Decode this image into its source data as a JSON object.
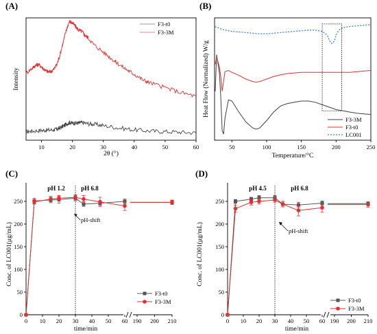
{
  "chart_data": [
    {
      "panel": "(A)",
      "type": "line",
      "xlabel": "2θ (°)",
      "ylabel": "Intensity",
      "xlim": [
        5,
        60
      ],
      "xticks": [
        "10",
        "20",
        "30",
        "40",
        "50",
        "60"
      ],
      "legend": {
        "position": "top-right",
        "entries": [
          "F3-t0",
          "F3-3M"
        ]
      },
      "series": [
        {
          "name": "F3-t0",
          "color": "#404040",
          "x": [
            5,
            7,
            10,
            12,
            14,
            15,
            16,
            17,
            18,
            19,
            20,
            21,
            22,
            23,
            25,
            27,
            30,
            35,
            40,
            45,
            50,
            55,
            60
          ],
          "y": [
            0.07,
            0.075,
            0.08,
            0.082,
            0.085,
            0.09,
            0.1,
            0.115,
            0.13,
            0.145,
            0.14,
            0.14,
            0.14,
            0.145,
            0.135,
            0.13,
            0.12,
            0.1,
            0.085,
            0.075,
            0.07,
            0.065,
            0.06
          ]
        },
        {
          "name": "F3-3M",
          "color": "#e03030",
          "x": [
            5,
            7,
            8,
            9,
            10,
            11,
            12,
            13,
            14,
            15,
            16,
            17,
            18,
            19,
            20,
            21,
            22,
            23,
            24,
            25,
            27,
            30,
            33,
            35,
            38,
            40,
            43,
            45,
            50,
            55,
            60
          ],
          "y": [
            0.55,
            0.59,
            0.61,
            0.62,
            0.6,
            0.575,
            0.56,
            0.56,
            0.58,
            0.62,
            0.7,
            0.8,
            0.9,
            0.97,
            0.96,
            0.93,
            0.9,
            0.89,
            0.86,
            0.84,
            0.78,
            0.72,
            0.66,
            0.62,
            0.57,
            0.54,
            0.49,
            0.47,
            0.43,
            0.39,
            0.36
          ]
        }
      ]
    },
    {
      "panel": "(B)",
      "type": "line",
      "xlabel": "Temperature/°C",
      "ylabel": "Heat Flow (Normalized) W/g",
      "xlim": [
        25,
        250
      ],
      "xticks": [
        "50",
        "100",
        "150",
        "200",
        "250"
      ],
      "legend": {
        "position": "bottom-right",
        "entries": [
          "F3-3M",
          "F3-t0",
          "LC001"
        ]
      },
      "series": [
        {
          "name": "F3-3M",
          "color": "#404040",
          "x": [
            26,
            28,
            30,
            32,
            34,
            36,
            38,
            40,
            45,
            50,
            60,
            70,
            80,
            85,
            90,
            100,
            110,
            120,
            130,
            140,
            150,
            160,
            170,
            180,
            190,
            200,
            210,
            220,
            230,
            240,
            250
          ],
          "y": [
            0.4,
            0.7,
            0.62,
            0.55,
            0.35,
            0.08,
            0.05,
            0.18,
            0.33,
            0.32,
            0.23,
            0.15,
            0.1,
            0.09,
            0.1,
            0.16,
            0.23,
            0.28,
            0.3,
            0.31,
            0.32,
            0.32,
            0.31,
            0.29,
            0.27,
            0.25,
            0.24,
            0.23,
            0.22,
            0.215,
            0.21
          ]
        },
        {
          "name": "F3-t0",
          "color": "#e03030",
          "x": [
            26,
            28,
            30,
            32,
            34,
            36,
            38,
            40,
            45,
            50,
            60,
            70,
            80,
            85,
            90,
            100,
            110,
            120,
            130,
            140,
            150,
            160,
            170,
            180,
            190,
            200,
            210,
            220,
            230,
            240,
            250
          ],
          "y": [
            0.62,
            0.68,
            0.64,
            0.6,
            0.52,
            0.4,
            0.48,
            0.56,
            0.57,
            0.555,
            0.53,
            0.5,
            0.48,
            0.475,
            0.48,
            0.5,
            0.52,
            0.535,
            0.545,
            0.55,
            0.555,
            0.555,
            0.555,
            0.555,
            0.555,
            0.555,
            0.555,
            0.555,
            0.56,
            0.565,
            0.57
          ]
        },
        {
          "name": "LC001",
          "color": "#3a7fcf",
          "x": [
            26,
            28,
            30,
            32,
            34,
            36,
            40,
            45,
            50,
            60,
            70,
            80,
            90,
            100,
            110,
            120,
            130,
            140,
            150,
            160,
            170,
            175,
            180,
            185,
            188,
            190,
            192,
            194,
            196,
            198,
            200,
            203,
            206,
            210,
            220,
            230,
            240,
            250
          ],
          "y": [
            0.93,
            0.92,
            0.92,
            0.915,
            0.91,
            0.905,
            0.9,
            0.895,
            0.89,
            0.885,
            0.88,
            0.875,
            0.87,
            0.87,
            0.875,
            0.88,
            0.885,
            0.89,
            0.895,
            0.9,
            0.9,
            0.895,
            0.89,
            0.87,
            0.85,
            0.82,
            0.8,
            0.79,
            0.8,
            0.82,
            0.86,
            0.89,
            0.91,
            0.92,
            0.93,
            0.935,
            0.94,
            0.945
          ]
        }
      ],
      "annotation_box": {
        "x": [
          180,
          208
        ],
        "note": "dotted rectangle"
      }
    },
    {
      "panel": "(C)",
      "type": "line",
      "xlabel": "time/min",
      "ylabel": "Conc. of LC001(μg/mL)",
      "ylim": [
        0,
        300
      ],
      "yticks": [
        "0",
        "50",
        "100",
        "150",
        "200",
        "250"
      ],
      "xticks": [
        "0",
        "10",
        "20",
        "30",
        "40",
        "50",
        "60",
        "190",
        "200",
        "210"
      ],
      "axis_break": "//",
      "phase_labels": [
        "pH 1.2",
        "pH 6.8"
      ],
      "shift_label": "pH-shift",
      "shift_x": 30,
      "legend": {
        "position": "bottom-right",
        "entries": [
          "F3-t0",
          "F3-3M"
        ]
      },
      "series": [
        {
          "name": "F3-t0",
          "color": "#555555",
          "marker": "square",
          "x": [
            0,
            5,
            15,
            20,
            30,
            35,
            45,
            60,
            210
          ],
          "y": [
            0,
            251,
            253,
            254,
            257,
            244,
            246,
            250,
            248
          ],
          "err": [
            0,
            6,
            6,
            8,
            6,
            5,
            5,
            5,
            4
          ]
        },
        {
          "name": "F3-3M",
          "color": "#e03030",
          "marker": "circle",
          "x": [
            0,
            5,
            15,
            20,
            30,
            35,
            45,
            60,
            210
          ],
          "y": [
            0,
            249,
            255,
            257,
            259,
            255,
            249,
            240,
            248
          ],
          "err": [
            0,
            5,
            6,
            6,
            6,
            8,
            10,
            10,
            5
          ]
        }
      ]
    },
    {
      "panel": "(D)",
      "type": "line",
      "xlabel": "time/min",
      "ylabel": "Conc. of LC001(μg/mL)",
      "ylim": [
        0,
        300
      ],
      "yticks": [
        "0",
        "50",
        "100",
        "150",
        "200",
        "250"
      ],
      "xticks": [
        "0",
        "10",
        "20",
        "30",
        "40",
        "50",
        "60",
        "190",
        "200",
        "210"
      ],
      "axis_break": "//",
      "phase_labels": [
        "pH 4.5",
        "pH 6.8"
      ],
      "shift_label": "pH-shift",
      "shift_x": 30,
      "legend": {
        "position": "bottom-right",
        "entries": [
          "F3-t0",
          "F3-3M"
        ]
      },
      "series": [
        {
          "name": "F3-t0",
          "color": "#555555",
          "marker": "square",
          "x": [
            0,
            5,
            15,
            20,
            30,
            35,
            45,
            60,
            210
          ],
          "y": [
            0,
            250,
            255,
            258,
            258,
            244,
            242,
            246,
            245
          ],
          "err": [
            0,
            4,
            4,
            5,
            5,
            6,
            6,
            5,
            4
          ]
        },
        {
          "name": "F3-3M",
          "color": "#e03030",
          "marker": "circle",
          "x": [
            0,
            5,
            15,
            20,
            30,
            35,
            45,
            60,
            210
          ],
          "y": [
            0,
            234,
            248,
            250,
            253,
            244,
            230,
            236,
            243
          ],
          "err": [
            0,
            8,
            6,
            6,
            6,
            6,
            12,
            10,
            6
          ]
        }
      ]
    }
  ]
}
